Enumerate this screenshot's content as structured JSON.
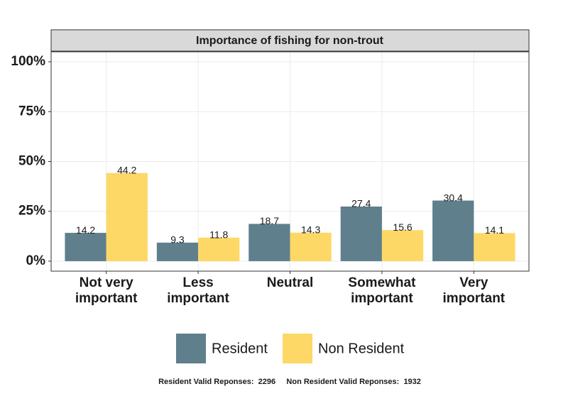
{
  "chart_data": {
    "type": "bar",
    "title": "Importance of fishing for non-trout",
    "categories": [
      "Not very important",
      "Less important",
      "Neutral",
      "Somewhat important",
      "Very important"
    ],
    "series": [
      {
        "name": "Resident",
        "color": "#5f7f8c",
        "values": [
          14.2,
          9.3,
          18.7,
          27.4,
          30.4
        ]
      },
      {
        "name": "Non Resident",
        "color": "#fdd866",
        "values": [
          44.2,
          11.8,
          14.3,
          15.6,
          14.1
        ]
      }
    ],
    "ylim": [
      -5,
      105
    ],
    "yticks": [
      {
        "value": 0,
        "label": "0%"
      },
      {
        "value": 25,
        "label": "25%"
      },
      {
        "value": 50,
        "label": "50%"
      },
      {
        "value": 75,
        "label": "75%"
      },
      {
        "value": 100,
        "label": "100%"
      }
    ],
    "grid": true,
    "legend": "bottom",
    "caption": "Resident Valid Reponses:  2296     Non Resident Valid Reponses:  1932"
  }
}
